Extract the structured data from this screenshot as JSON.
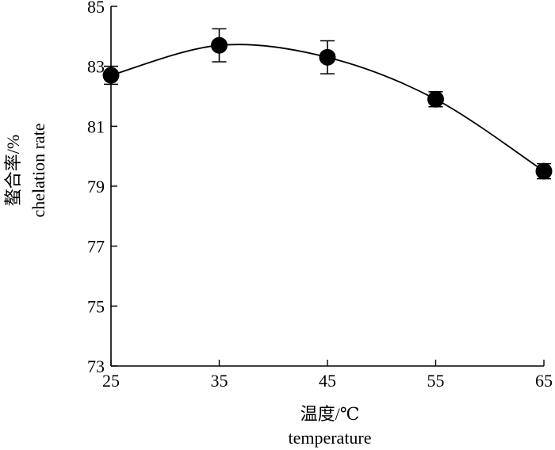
{
  "chart_data": {
    "type": "line",
    "x": [
      25,
      35,
      45,
      55,
      65
    ],
    "y": [
      82.7,
      83.7,
      83.3,
      81.9,
      79.5
    ],
    "error": [
      0.3,
      0.55,
      0.55,
      0.25,
      0.25
    ],
    "xlim": [
      25,
      65
    ],
    "ylim": [
      73,
      85
    ],
    "xticks": [
      25,
      35,
      45,
      55,
      65
    ],
    "yticks": [
      73,
      75,
      77,
      79,
      81,
      83,
      85
    ],
    "xlabel": [
      "温度/℃",
      "temperature"
    ],
    "ylabel": [
      "螯合率/%",
      "chelation rate"
    ],
    "grid": false,
    "marker": "filled-circle",
    "smooth": true
  }
}
